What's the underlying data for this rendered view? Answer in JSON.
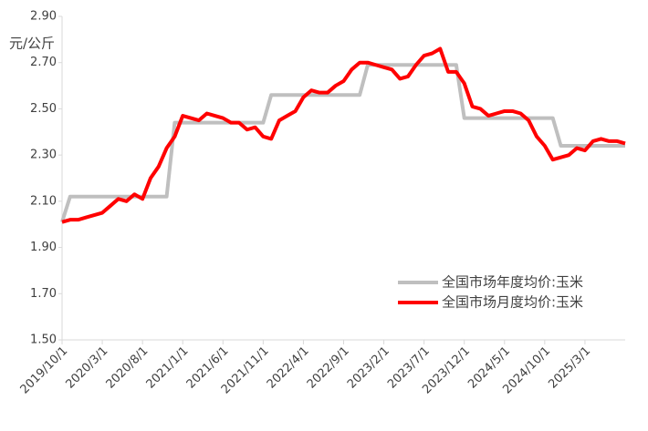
{
  "chart_data": {
    "type": "line",
    "y_label": "元/公斤",
    "categories": [
      "2019/10/1",
      null,
      null,
      null,
      null,
      "2020/3/1",
      null,
      null,
      null,
      null,
      "2020/8/1",
      null,
      null,
      null,
      null,
      "2021/1/1",
      null,
      null,
      null,
      null,
      "2021/6/1",
      null,
      null,
      null,
      null,
      "2021/11/1",
      null,
      null,
      null,
      null,
      "2022/4/1",
      null,
      null,
      null,
      null,
      "2022/9/1",
      null,
      null,
      null,
      null,
      "2023/2/1",
      null,
      null,
      null,
      null,
      "2023/7/1",
      null,
      null,
      null,
      null,
      "2023/12/1",
      null,
      null,
      null,
      null,
      "2024/5/1",
      null,
      null,
      null,
      null,
      "2024/10/1",
      null,
      null,
      null,
      null,
      "2025/3/1",
      null,
      null,
      null,
      null,
      null
    ],
    "series": [
      {
        "name": "全国市场年度均价:玉米",
        "color": "#bfbfbf",
        "values": [
          2.01,
          2.12,
          2.12,
          2.12,
          2.12,
          2.12,
          2.12,
          2.12,
          2.12,
          2.12,
          2.12,
          2.12,
          2.12,
          2.12,
          2.44,
          2.44,
          2.44,
          2.44,
          2.44,
          2.44,
          2.44,
          2.44,
          2.44,
          2.44,
          2.44,
          2.44,
          2.56,
          2.56,
          2.56,
          2.56,
          2.56,
          2.56,
          2.56,
          2.56,
          2.56,
          2.56,
          2.56,
          2.56,
          2.69,
          2.69,
          2.69,
          2.69,
          2.69,
          2.69,
          2.69,
          2.69,
          2.69,
          2.69,
          2.69,
          2.69,
          2.46,
          2.46,
          2.46,
          2.46,
          2.46,
          2.46,
          2.46,
          2.46,
          2.46,
          2.46,
          2.46,
          2.46,
          2.34,
          2.34,
          2.34,
          2.34,
          2.34,
          2.34,
          2.34,
          2.34,
          2.34
        ]
      },
      {
        "name": "全国市场月度均价:玉米",
        "color": "#ff0000",
        "values": [
          2.01,
          2.02,
          2.02,
          2.03,
          2.04,
          2.05,
          2.08,
          2.11,
          2.1,
          2.13,
          2.11,
          2.2,
          2.25,
          2.33,
          2.38,
          2.47,
          2.46,
          2.45,
          2.48,
          2.47,
          2.46,
          2.44,
          2.44,
          2.41,
          2.42,
          2.38,
          2.37,
          2.45,
          2.47,
          2.49,
          2.55,
          2.58,
          2.57,
          2.57,
          2.6,
          2.62,
          2.67,
          2.7,
          2.7,
          2.69,
          2.68,
          2.67,
          2.63,
          2.64,
          2.69,
          2.73,
          2.74,
          2.76,
          2.66,
          2.66,
          2.61,
          2.51,
          2.5,
          2.47,
          2.48,
          2.49,
          2.49,
          2.48,
          2.45,
          2.38,
          2.34,
          2.28,
          2.29,
          2.3,
          2.33,
          2.32,
          2.36,
          2.37,
          2.36,
          2.36,
          2.35
        ]
      }
    ],
    "ylim": [
      1.5,
      2.9
    ],
    "yticks": [
      {
        "value": 1.5,
        "label": "1.50"
      },
      {
        "value": 1.7,
        "label": "1.70"
      },
      {
        "value": 1.9,
        "label": "1.90"
      },
      {
        "value": 2.1,
        "label": "2.10"
      },
      {
        "value": 2.3,
        "label": "2.30"
      },
      {
        "value": 2.5,
        "label": "2.50"
      },
      {
        "value": 2.7,
        "label": "2.70"
      },
      {
        "value": 2.9,
        "label": "2.90"
      }
    ],
    "legend": "lower-right"
  }
}
